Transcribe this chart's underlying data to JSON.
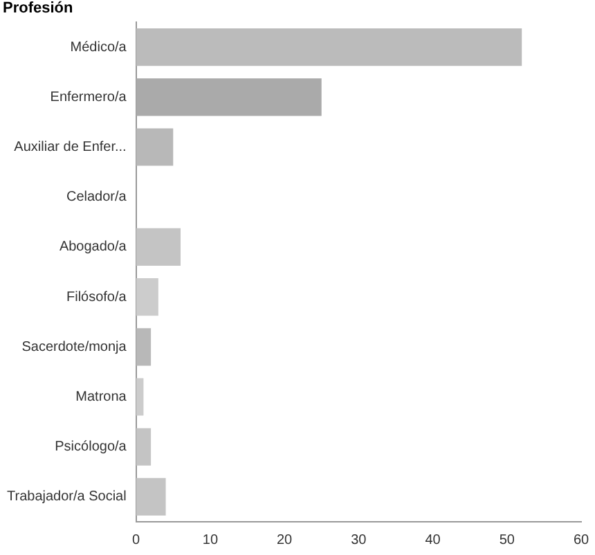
{
  "chart_data": {
    "type": "bar",
    "orientation": "horizontal",
    "title": "Profesión",
    "categories": [
      "Médico/a",
      "Enfermero/a",
      "Auxiliar de Enfer...",
      "Celador/a",
      "Abogado/a",
      "Filósofo/a",
      "Sacerdote/monja",
      "Matrona",
      "Psicólogo/a",
      "Trabajador/a Social"
    ],
    "values": [
      52,
      25,
      5,
      0,
      6,
      3,
      2,
      1,
      2,
      4
    ],
    "colors": [
      "#bbbbbb",
      "#aaaaaa",
      "#b8b8b8",
      "#bbbbbb",
      "#c4c4c4",
      "#cccccc",
      "#b8b8b8",
      "#cccccc",
      "#c4c4c4",
      "#c4c4c4"
    ],
    "xlim": [
      0,
      60
    ],
    "xticks": [
      0,
      10,
      20,
      30,
      40,
      50,
      60
    ],
    "grid": false,
    "legend": false
  }
}
